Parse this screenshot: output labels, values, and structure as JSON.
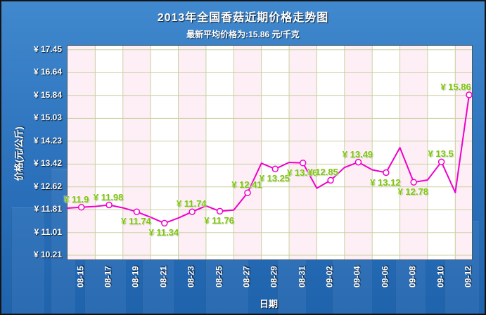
{
  "colors": {
    "background_top": "#4189ce",
    "background_bottom": "#1f63ad",
    "line": "#ee00cc",
    "marker_fill": "#ffffff",
    "data_label": "#7fc40d",
    "grid_line": "#c9d1a0",
    "plot_background": "#ffffff",
    "plot_stripe": "#fdeff5",
    "tick_text": "#ffffff"
  },
  "chart_data": {
    "type": "line",
    "title": "2013年全国香菇近期价格走势图",
    "subtitle": "最新平均价格为:15.86 元/千克",
    "xlabel": "日期",
    "ylabel": "价格(元/公斤)",
    "currency_prefix": "¥",
    "grid": true,
    "legend_position": "none",
    "ylim": [
      10.21,
      17.45
    ],
    "y_ticks": [
      17.45,
      16.64,
      15.84,
      15.03,
      14.23,
      13.42,
      12.62,
      11.81,
      11.01,
      10.21
    ],
    "x_tick_labels": [
      "08-15",
      "08-17",
      "08-19",
      "08-21",
      "08-23",
      "08-25",
      "08-27",
      "08-29",
      "08-31",
      "09-02",
      "09-04",
      "09-06",
      "09-08",
      "09-10",
      "09-12"
    ],
    "series": [
      {
        "points": [
          {
            "date": "08-14",
            "value": 11.87
          },
          {
            "date": "08-15",
            "value": 11.9,
            "label": "¥ 11.9",
            "label_pos": "above",
            "label_dx": -6
          },
          {
            "date": "08-16",
            "value": 11.93
          },
          {
            "date": "08-17",
            "value": 11.98,
            "label": "¥ 11.98",
            "label_pos": "above"
          },
          {
            "date": "08-18",
            "value": 11.88
          },
          {
            "date": "08-19",
            "value": 11.74,
            "label": "¥ 11.74",
            "label_pos": "below"
          },
          {
            "date": "08-20",
            "value": 11.55
          },
          {
            "date": "08-21",
            "value": 11.34,
            "label": "¥ 11.34",
            "label_pos": "below"
          },
          {
            "date": "08-22",
            "value": 11.52
          },
          {
            "date": "08-23",
            "value": 11.74,
            "label": "¥ 11.74",
            "label_pos": "above"
          },
          {
            "date": "08-24",
            "value": 11.95
          },
          {
            "date": "08-25",
            "value": 11.76,
            "label": "¥ 11.76",
            "label_pos": "below"
          },
          {
            "date": "08-26",
            "value": 11.8
          },
          {
            "date": "08-27",
            "value": 12.41,
            "label": "¥ 12.41",
            "label_pos": "above"
          },
          {
            "date": "08-28",
            "value": 13.45
          },
          {
            "date": "08-29",
            "value": 13.25,
            "label": "¥ 13.25",
            "label_pos": "below"
          },
          {
            "date": "08-30",
            "value": 13.48
          },
          {
            "date": "08-31",
            "value": 13.46,
            "label": "¥ 13.46",
            "label_pos": "below"
          },
          {
            "date": "09-01",
            "value": 12.57
          },
          {
            "date": "09-02",
            "value": 12.85,
            "label": "¥ 12.85",
            "label_pos": "above",
            "label_dx": -10
          },
          {
            "date": "09-03",
            "value": 13.3
          },
          {
            "date": "09-04",
            "value": 13.49,
            "label": "¥ 13.49",
            "label_pos": "above"
          },
          {
            "date": "09-05",
            "value": 13.22
          },
          {
            "date": "09-06",
            "value": 13.12,
            "label": "¥ 13.12",
            "label_pos": "below"
          },
          {
            "date": "09-07",
            "value": 14.0
          },
          {
            "date": "09-08",
            "value": 12.78,
            "label": "¥ 12.78",
            "label_pos": "below"
          },
          {
            "date": "09-09",
            "value": 12.86
          },
          {
            "date": "09-10",
            "value": 13.5,
            "label": "¥ 13.5",
            "label_pos": "above"
          },
          {
            "date": "09-11",
            "value": 12.42
          },
          {
            "date": "09-12",
            "value": 15.86,
            "label": "¥ 15.86",
            "label_pos": "above",
            "label_dx": -18
          }
        ]
      }
    ]
  }
}
